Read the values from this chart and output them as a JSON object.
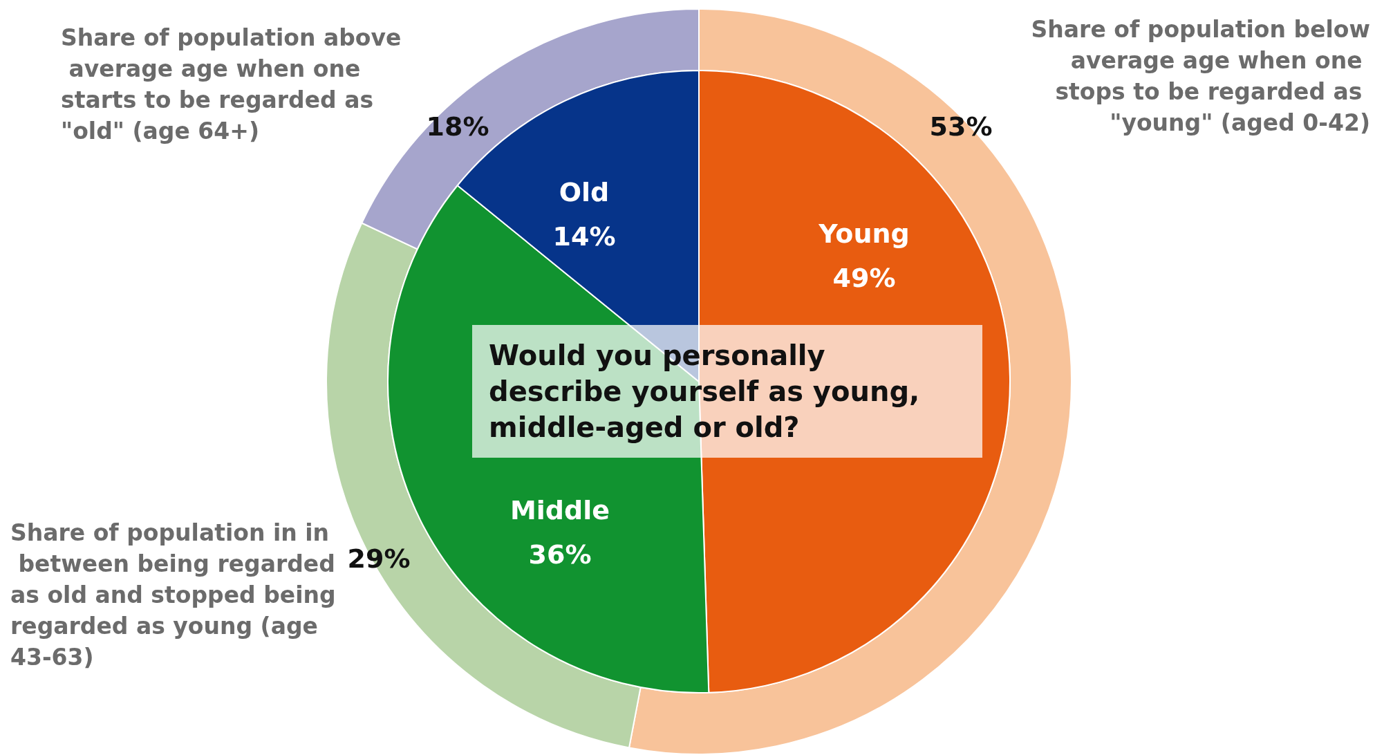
{
  "chart_data": [
    {
      "type": "pie",
      "title": "Would you personally describe yourself as young, middle-aged or old?",
      "legend": false,
      "categories": [
        "Young",
        "Middle",
        "Old"
      ],
      "values": [
        49,
        36,
        14
      ],
      "colors": [
        "#e85c10",
        "#119330",
        "#06348a"
      ],
      "value_labels": [
        "49%",
        "36%",
        "14%"
      ]
    },
    {
      "type": "donut",
      "legend": false,
      "categories": [
        "Share of population below average age when one stops to be regarded as \"young\" (aged 0-42)",
        "Share of population in in between being regarded as old and stopped being regarded as young (age 43-63)",
        "Share of population above average age when one starts to be regarded as \"old\" (age 64+)"
      ],
      "values": [
        53,
        29,
        18
      ],
      "colors": [
        "#f8c39a",
        "#b8d4a8",
        "#a6a5cc"
      ],
      "value_labels": [
        "53%",
        "29%",
        "18%"
      ]
    }
  ]
}
